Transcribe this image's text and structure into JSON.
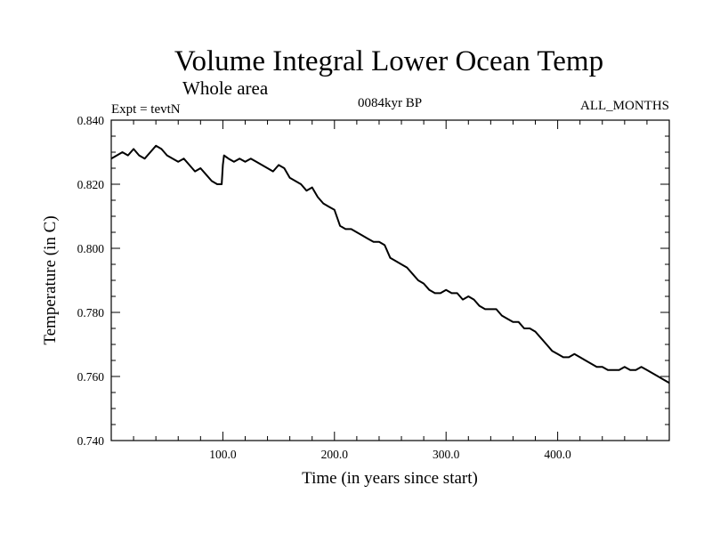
{
  "chart_data": {
    "type": "line",
    "title": "Volume Integral Lower Ocean Temp",
    "subtitle": "Whole area",
    "annotations": {
      "left": "Expt = tevtN",
      "center": "0084kyr BP",
      "right": "ALL_MONTHS"
    },
    "xlabel": "Time (in years since start)",
    "ylabel": "Temperature (in C)",
    "xlim": [
      0,
      500
    ],
    "ylim": [
      0.74,
      0.84
    ],
    "x_ticks": [
      100,
      200,
      300,
      400
    ],
    "x_tick_labels": [
      "100.0",
      "200.0",
      "300.0",
      "400.0"
    ],
    "y_ticks": [
      0.74,
      0.76,
      0.78,
      0.8,
      0.82,
      0.84
    ],
    "y_tick_labels": [
      "0.740",
      "0.760",
      "0.780",
      "0.800",
      "0.820",
      "0.840"
    ],
    "series": [
      {
        "name": "Temperature",
        "x": [
          0,
          5,
          10,
          15,
          20,
          25,
          30,
          35,
          40,
          45,
          50,
          55,
          60,
          65,
          70,
          75,
          80,
          85,
          90,
          95,
          99,
          100,
          101,
          105,
          110,
          115,
          120,
          125,
          130,
          135,
          140,
          145,
          150,
          155,
          160,
          165,
          170,
          175,
          180,
          185,
          190,
          195,
          200,
          205,
          210,
          215,
          220,
          225,
          230,
          235,
          240,
          245,
          250,
          255,
          260,
          265,
          270,
          275,
          280,
          285,
          290,
          295,
          300,
          305,
          310,
          315,
          320,
          325,
          330,
          335,
          340,
          345,
          350,
          355,
          360,
          365,
          370,
          375,
          380,
          385,
          390,
          395,
          400,
          405,
          410,
          415,
          420,
          425,
          430,
          435,
          440,
          445,
          450,
          455,
          460,
          465,
          470,
          475,
          480,
          485,
          490,
          495,
          500
        ],
        "values": [
          0.828,
          0.829,
          0.83,
          0.829,
          0.831,
          0.829,
          0.828,
          0.83,
          0.832,
          0.831,
          0.829,
          0.828,
          0.827,
          0.828,
          0.826,
          0.824,
          0.825,
          0.823,
          0.821,
          0.82,
          0.82,
          0.826,
          0.829,
          0.828,
          0.827,
          0.828,
          0.827,
          0.828,
          0.827,
          0.826,
          0.825,
          0.824,
          0.826,
          0.825,
          0.822,
          0.821,
          0.82,
          0.818,
          0.819,
          0.816,
          0.814,
          0.813,
          0.812,
          0.807,
          0.806,
          0.806,
          0.805,
          0.804,
          0.803,
          0.802,
          0.802,
          0.801,
          0.797,
          0.796,
          0.795,
          0.794,
          0.792,
          0.79,
          0.789,
          0.787,
          0.786,
          0.786,
          0.787,
          0.786,
          0.786,
          0.784,
          0.785,
          0.784,
          0.782,
          0.781,
          0.781,
          0.781,
          0.779,
          0.778,
          0.777,
          0.777,
          0.775,
          0.775,
          0.774,
          0.772,
          0.77,
          0.768,
          0.767,
          0.766,
          0.766,
          0.767,
          0.766,
          0.765,
          0.764,
          0.763,
          0.763,
          0.762,
          0.762,
          0.762,
          0.763,
          0.762,
          0.762,
          0.763,
          0.762,
          0.761,
          0.76,
          0.759,
          0.758
        ]
      }
    ]
  }
}
